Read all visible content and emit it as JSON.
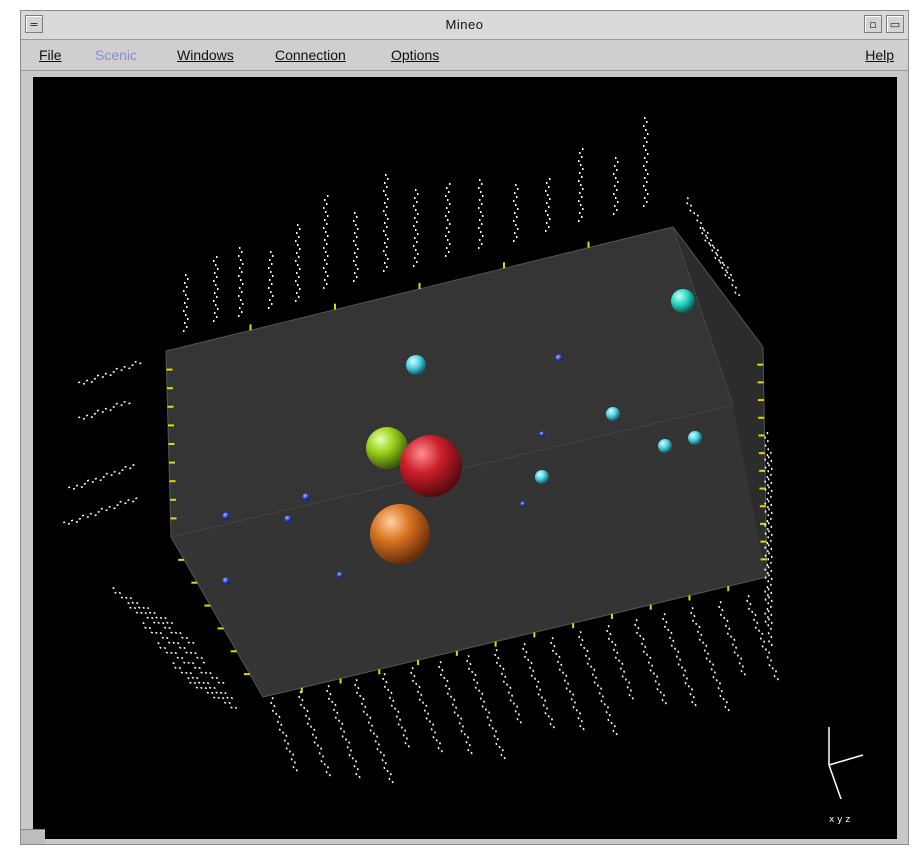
{
  "window": {
    "title": "Mineo",
    "controls": {
      "menu_glyph": "=",
      "minimize_glyph": "▫",
      "maximize_glyph": "▭"
    }
  },
  "menubar": {
    "items": [
      {
        "label": "File",
        "enabled": true
      },
      {
        "label": "Scenic",
        "enabled": false
      },
      {
        "label": "Windows",
        "enabled": true
      },
      {
        "label": "Connection",
        "enabled": true
      },
      {
        "label": "Options",
        "enabled": true
      },
      {
        "label": "Help",
        "enabled": true
      }
    ]
  },
  "scene": {
    "background": "#000000",
    "box_face_color": "#3a3a3a",
    "tick_color": "#e8d800",
    "label_color": "#ffffff",
    "axes_triad_label": "x y z",
    "spheres": [
      {
        "color": "#cc1f2a",
        "label": "red sphere"
      },
      {
        "color": "#d9731f",
        "label": "orange sphere"
      },
      {
        "color": "#9ad21c",
        "label": "green sphere"
      },
      {
        "color": "#2ad6c0",
        "label": "teal sphere"
      },
      {
        "color": "#2ad6c0",
        "label": "teal sphere"
      },
      {
        "color": "#4fd3e0",
        "label": "cyan sphere"
      },
      {
        "color": "#4fd3e0",
        "label": "cyan sphere"
      },
      {
        "color": "#4fd3e0",
        "label": "cyan sphere"
      },
      {
        "color": "#4fd3e0",
        "label": "cyan sphere"
      }
    ]
  }
}
